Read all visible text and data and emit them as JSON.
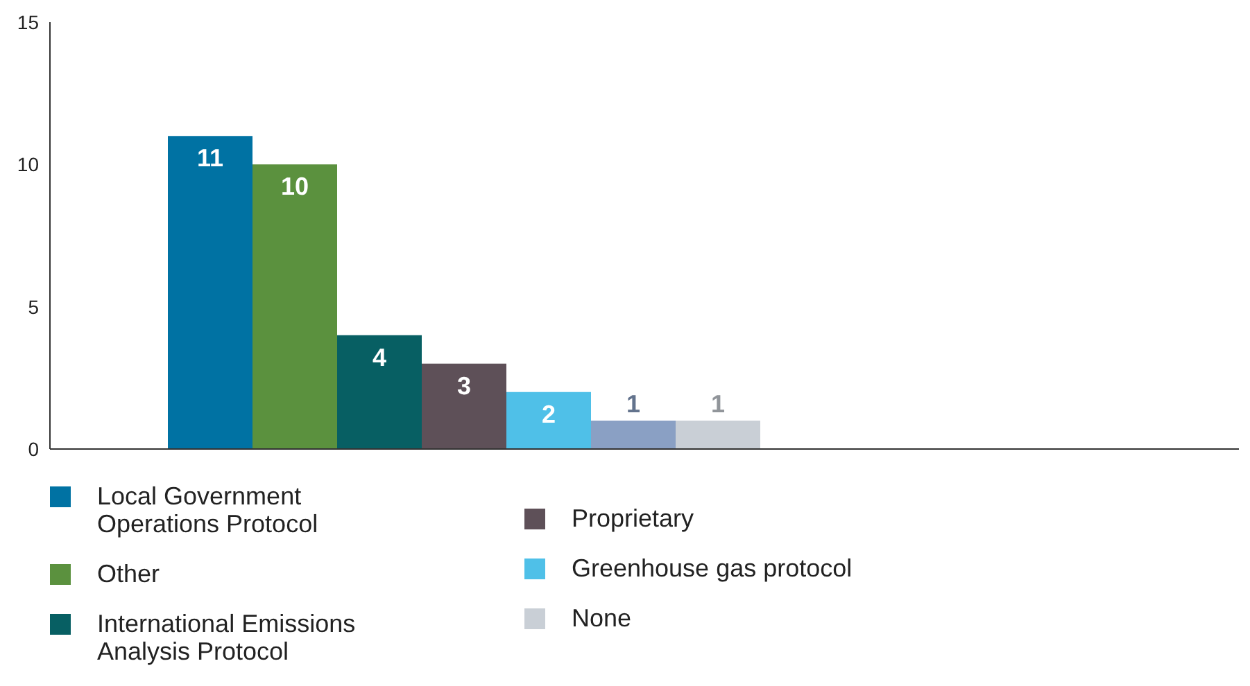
{
  "chart_data": {
    "type": "bar",
    "categories": [
      null
    ],
    "series": [
      {
        "name": "Local Government Operations Protocol",
        "color": "#0072a3",
        "values": [
          11
        ]
      },
      {
        "name": "Other",
        "color": "#5b913e",
        "values": [
          10
        ]
      },
      {
        "name": "International Emissions Analysis Protocol",
        "color": "#075f63",
        "values": [
          4
        ]
      },
      {
        "name": "Proprietary",
        "color": "#5e5058",
        "values": [
          3
        ]
      },
      {
        "name": "Greenhouse gas protocol",
        "color": "#4fc0e8",
        "values": [
          2
        ]
      },
      {
        "color": "#8aa0c4",
        "values": [
          1
        ]
      },
      {
        "name": "None",
        "color": "#c9cfd6",
        "values": [
          1
        ]
      }
    ],
    "ylim": [
      0,
      15
    ],
    "yticks": [
      0,
      5,
      10,
      15
    ],
    "grid": false,
    "data_labels": true,
    "legend": "bottom",
    "tick_labels": "y"
  }
}
